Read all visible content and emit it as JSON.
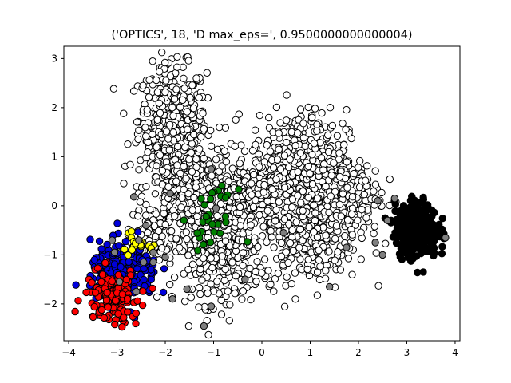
{
  "chart_data": {
    "type": "scatter",
    "title": "('OPTICS', 18, 'D max_eps=', 0.9500000000000004)",
    "xlabel": "",
    "ylabel": "",
    "xlim": [
      -4.1,
      4.1
    ],
    "ylim": [
      -2.75,
      3.25
    ],
    "xticks": [
      -4,
      -3,
      -2,
      -1,
      0,
      1,
      2,
      3,
      4
    ],
    "yticks": [
      -2,
      -1,
      0,
      1,
      2,
      3
    ],
    "grid": false,
    "legend": "none",
    "marker": "circle, black edge",
    "clusters": [
      {
        "color": "#ffffff",
        "role": "main-cluster",
        "blobs": [
          {
            "cx": -1.85,
            "cy": 1.75,
            "sx": 0.35,
            "sy": 0.55,
            "n": 420
          },
          {
            "cx": -1.55,
            "cy": 0.35,
            "sx": 0.45,
            "sy": 0.45,
            "n": 360
          },
          {
            "cx": -0.9,
            "cy": -0.9,
            "sx": 0.45,
            "sy": 0.55,
            "n": 340
          },
          {
            "cx": -0.25,
            "cy": 0.15,
            "sx": 0.45,
            "sy": 0.4,
            "n": 260
          },
          {
            "cx": 0.75,
            "cy": 0.95,
            "sx": 0.5,
            "sy": 0.5,
            "n": 360
          },
          {
            "cx": 1.0,
            "cy": -0.55,
            "sx": 0.5,
            "sy": 0.5,
            "n": 320
          },
          {
            "cx": 1.65,
            "cy": 0.25,
            "sx": 0.4,
            "sy": 0.4,
            "n": 200
          },
          {
            "cx": -2.3,
            "cy": -0.65,
            "sx": 0.25,
            "sy": 0.25,
            "n": 70
          }
        ]
      },
      {
        "color": "#000000",
        "role": "cluster",
        "blobs": [
          {
            "cx": 3.2,
            "cy": -0.5,
            "sx": 0.22,
            "sy": 0.28,
            "n": 340
          }
        ]
      },
      {
        "color": "#0000dd",
        "role": "cluster",
        "blobs": [
          {
            "cx": -2.85,
            "cy": -1.35,
            "sx": 0.35,
            "sy": 0.3,
            "n": 210
          }
        ]
      },
      {
        "color": "#ff0000",
        "role": "cluster",
        "blobs": [
          {
            "cx": -3.1,
            "cy": -1.85,
            "sx": 0.28,
            "sy": 0.27,
            "n": 150
          }
        ]
      },
      {
        "color": "#ffff00",
        "role": "cluster",
        "blobs": [
          {
            "cx": -2.7,
            "cy": -0.75,
            "sx": 0.18,
            "sy": 0.12,
            "n": 16
          }
        ]
      },
      {
        "color": "#008000",
        "role": "cluster",
        "blobs": [
          {
            "cx": -1.0,
            "cy": -0.25,
            "sx": 0.22,
            "sy": 0.28,
            "n": 30
          }
        ]
      },
      {
        "color": "#7f7f7f",
        "role": "noise",
        "points": [
          [
            -2.65,
            0.18
          ],
          [
            -2.4,
            -0.4
          ],
          [
            -2.25,
            -0.95
          ],
          [
            -2.25,
            -1.15
          ],
          [
            -2.0,
            -1.05
          ],
          [
            -1.85,
            -1.9
          ],
          [
            -3.1,
            -0.7
          ],
          [
            -3.05,
            -0.95
          ],
          [
            -2.6,
            -1.75
          ],
          [
            -2.45,
            -1.15
          ],
          [
            -1.2,
            -2.45
          ],
          [
            -1.55,
            -1.7
          ],
          [
            -1.05,
            -2.05
          ],
          [
            -0.95,
            -0.05
          ],
          [
            -0.35,
            -1.5
          ],
          [
            1.4,
            -1.65
          ],
          [
            2.4,
            0.1
          ],
          [
            2.75,
            0.15
          ],
          [
            2.5,
            -1.0
          ],
          [
            3.8,
            -0.65
          ],
          [
            -2.55,
            -0.7
          ],
          [
            -2.95,
            -1.55
          ],
          [
            -1.9,
            0.25
          ],
          [
            -1.05,
            0.75
          ],
          [
            0.45,
            -0.55
          ],
          [
            1.75,
            -0.85
          ],
          [
            2.35,
            -0.75
          ],
          [
            2.6,
            -0.3
          ]
        ]
      }
    ]
  }
}
